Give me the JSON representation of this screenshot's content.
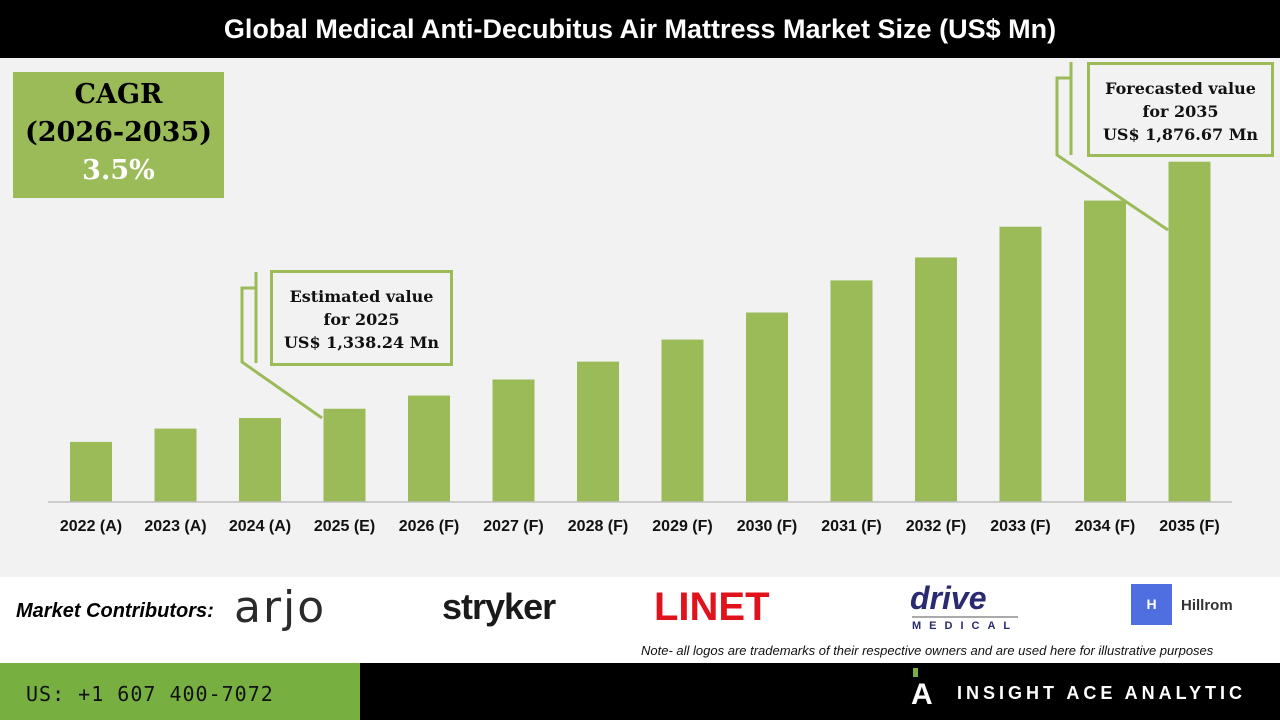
{
  "title": "Global Medical Anti-Decubitus Air Mattress Market Size (US$ Mn)",
  "cagr": {
    "label": "CAGR",
    "period": "(2026-2035)",
    "value": "3.5%"
  },
  "callouts": {
    "estimated": {
      "line1": "Estimated value",
      "line2": "for 2025",
      "line3": "US$ 1,338.24 Mn"
    },
    "forecast": {
      "line1": "Forecasted value",
      "line2": "for 2035",
      "line3": "US$ 1,876.67 Mn"
    }
  },
  "chart_data": {
    "type": "bar",
    "categories": [
      "2022 (A)",
      "2023 (A)",
      "2024 (A)",
      "2025 (E)",
      "2026 (F)",
      "2027 (F)",
      "2028 (F)",
      "2029 (F)",
      "2030 (F)",
      "2031 (F)",
      "2032 (F)",
      "2033 (F)",
      "2034 (F)",
      "2035 (F)"
    ],
    "values": [
      1266,
      1295,
      1318,
      1338.24,
      1367,
      1402,
      1441,
      1489,
      1548,
      1618,
      1668,
      1735,
      1792,
      1876.67
    ],
    "ylim": [
      1135,
      1900
    ],
    "grid": false,
    "bar_color": "#9bbb59"
  },
  "contributors": {
    "label": "Market Contributors:",
    "logos": [
      "arjo",
      "stryker",
      "LINET",
      "drive",
      "MEDICAL",
      "Hillrom"
    ]
  },
  "note": "Note- all logos are trademarks of their respective owners and are used here for illustrative purposes",
  "footer": {
    "phone": "US: +1 607 400-7072",
    "brand": "INSIGHT ACE ANALYTIC"
  }
}
